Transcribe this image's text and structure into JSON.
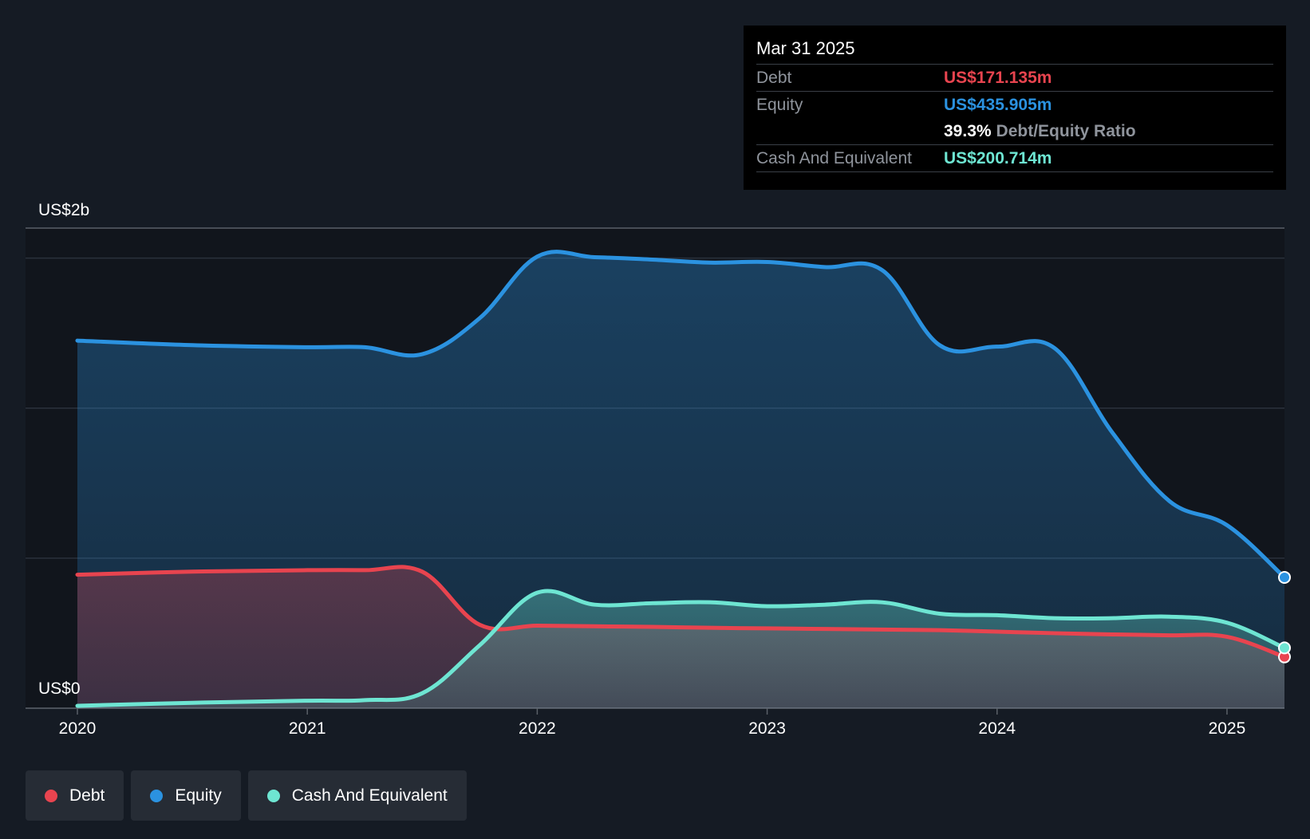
{
  "tooltip": {
    "date": "Mar 31 2025",
    "rows": [
      {
        "label": "Debt",
        "value": "US$171.135m",
        "color": "#e8444f"
      },
      {
        "label": "Equity",
        "value": "US$435.905m",
        "color": "#2b92e0"
      },
      {
        "label": "",
        "value": "39.3%",
        "suffix": "Debt/Equity Ratio"
      },
      {
        "label": "Cash And Equivalent",
        "value": "US$200.714m",
        "color": "#6ee5d2"
      }
    ]
  },
  "legend": [
    {
      "label": "Debt",
      "color": "#e8444f"
    },
    {
      "label": "Equity",
      "color": "#2b92e0"
    },
    {
      "label": "Cash And Equivalent",
      "color": "#6ee5d2"
    }
  ],
  "chart_data": {
    "type": "area",
    "ylabel_top": "US$2b",
    "ylabel_bottom": "US$0",
    "ylim": [
      0,
      1600
    ],
    "x_tick_labels": [
      "2020",
      "2021",
      "2022",
      "2023",
      "2024",
      "2025"
    ],
    "xlim": [
      2020.0,
      2025.25
    ],
    "grid": true,
    "series": [
      {
        "name": "Equity",
        "color": "#2b92e0",
        "x": [
          2020.0,
          2020.5,
          2021.0,
          2021.25,
          2021.5,
          2021.75,
          2022.0,
          2022.25,
          2022.5,
          2022.75,
          2023.0,
          2023.25,
          2023.5,
          2023.75,
          2024.0,
          2024.25,
          2024.5,
          2024.75,
          2025.0,
          2025.25
        ],
        "values": [
          1225,
          1210,
          1203,
          1203,
          1180,
          1300,
          1505,
          1503,
          1495,
          1485,
          1487,
          1470,
          1460,
          1210,
          1205,
          1200,
          920,
          690,
          610,
          436
        ]
      },
      {
        "name": "Cash And Equivalent",
        "color": "#6ee5d2",
        "x": [
          2020.0,
          2020.5,
          2021.0,
          2021.25,
          2021.5,
          2021.75,
          2022.0,
          2022.25,
          2022.5,
          2022.75,
          2023.0,
          2023.25,
          2023.5,
          2023.75,
          2024.0,
          2024.25,
          2024.5,
          2024.75,
          2025.0,
          2025.25
        ],
        "values": [
          8,
          18,
          25,
          27,
          50,
          210,
          385,
          345,
          350,
          353,
          340,
          345,
          353,
          315,
          310,
          300,
          300,
          305,
          285,
          201
        ]
      },
      {
        "name": "Debt",
        "color": "#e8444f",
        "x": [
          2020.0,
          2020.5,
          2021.0,
          2021.25,
          2021.5,
          2021.75,
          2022.0,
          2022.25,
          2022.5,
          2022.75,
          2023.0,
          2023.25,
          2023.5,
          2023.75,
          2024.0,
          2024.25,
          2024.5,
          2024.75,
          2025.0,
          2025.25
        ],
        "values": [
          445,
          455,
          460,
          460,
          455,
          278,
          275,
          273,
          271,
          268,
          266,
          264,
          262,
          260,
          255,
          250,
          246,
          243,
          238,
          171
        ]
      }
    ]
  }
}
